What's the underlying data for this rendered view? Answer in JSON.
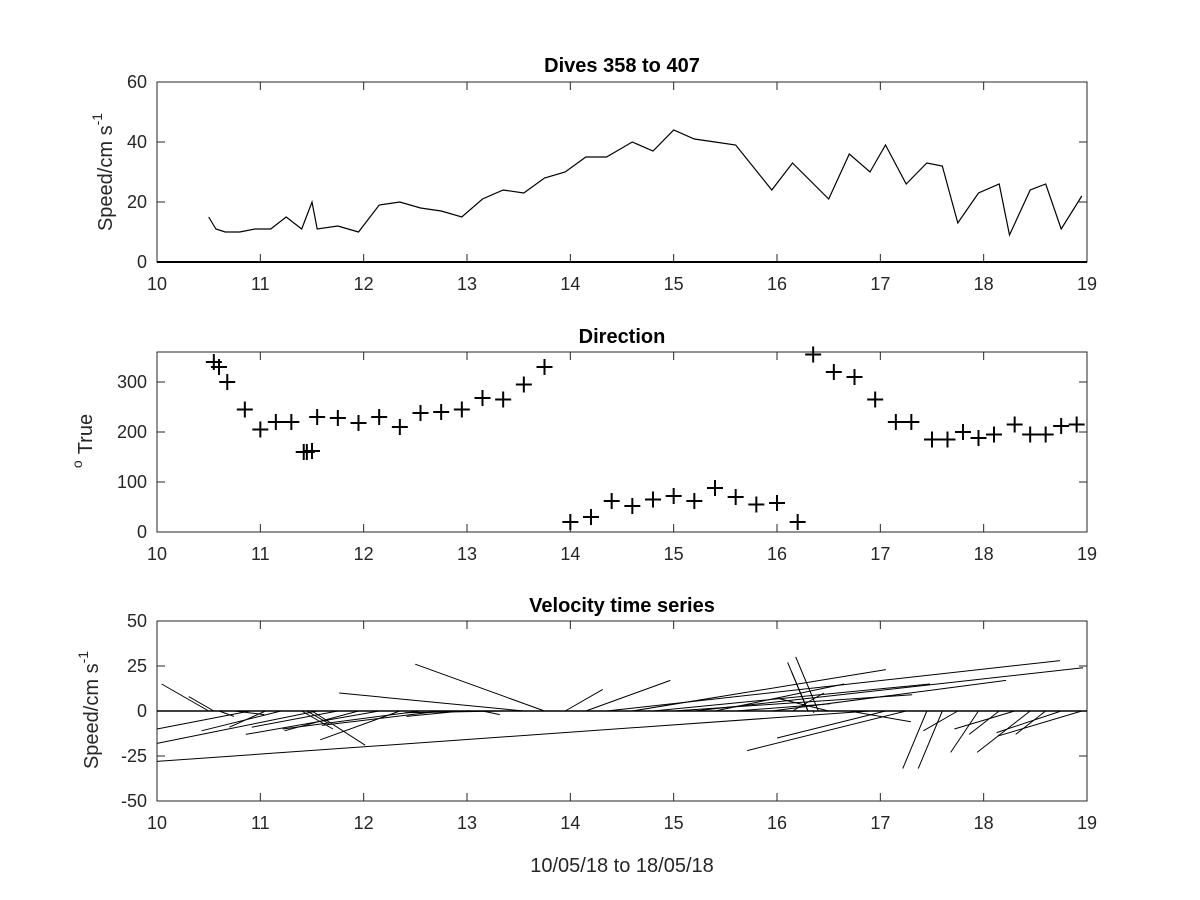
{
  "chart_data": [
    {
      "type": "line",
      "title": "Dives 358 to 407",
      "xlabel": "",
      "ylabel": "Speed/cm s",
      "ylabel_sup": "-1",
      "xlim": [
        10,
        19
      ],
      "ylim": [
        0,
        60
      ],
      "xticks": [
        10,
        11,
        12,
        13,
        14,
        15,
        16,
        17,
        18,
        19
      ],
      "yticks": [
        0,
        20,
        40,
        60
      ],
      "series": [
        {
          "x": [
            10.5,
            10.57,
            10.66,
            10.8,
            10.95,
            11.1,
            11.25,
            11.4,
            11.5,
            11.55,
            11.75,
            11.95,
            12.15,
            12.35,
            12.55,
            12.75,
            12.95,
            13.15,
            13.35,
            13.55,
            13.75,
            13.95,
            14.15,
            14.35,
            14.6,
            14.8,
            15.0,
            15.2,
            15.4,
            15.6,
            15.95,
            16.15,
            16.5,
            16.7,
            16.9,
            17.05,
            17.25,
            17.45,
            17.6,
            17.75,
            17.95,
            18.15,
            18.25,
            18.45,
            18.6,
            18.75,
            18.95
          ],
          "y": [
            15,
            11,
            10,
            10,
            11,
            11,
            15,
            11,
            20,
            11,
            12,
            10,
            19,
            20,
            18,
            17,
            15,
            21,
            24,
            23,
            28,
            30,
            35,
            35,
            40,
            37,
            44,
            41,
            40,
            39,
            24,
            33,
            21,
            36,
            30,
            39,
            26,
            33,
            32,
            13,
            23,
            26,
            9,
            24,
            26,
            11,
            22
          ]
        }
      ],
      "baseline": 0
    },
    {
      "type": "scatter",
      "title": "Direction",
      "xlabel": "",
      "ylabel": "True",
      "ylabel_sup": "o",
      "xlim": [
        10,
        19
      ],
      "ylim": [
        0,
        360
      ],
      "xticks": [
        10,
        11,
        12,
        13,
        14,
        15,
        16,
        17,
        18,
        19
      ],
      "yticks": [
        0,
        100,
        200,
        300
      ],
      "marker": "+",
      "series": [
        {
          "x": [
            10.55,
            10.6,
            10.68,
            10.85,
            11.0,
            11.15,
            11.3,
            11.42,
            11.45,
            11.5,
            11.55,
            11.75,
            11.95,
            12.15,
            12.35,
            12.55,
            12.75,
            12.95,
            13.15,
            13.35,
            13.55,
            13.75,
            14.0,
            14.2,
            14.4,
            14.6,
            14.8,
            15.0,
            15.2,
            15.4,
            15.6,
            15.8,
            16.0,
            16.2,
            16.35,
            16.55,
            16.75,
            16.95,
            17.15,
            17.3,
            17.5,
            17.65,
            17.8,
            17.95,
            18.1,
            18.3,
            18.45,
            18.6,
            18.75,
            18.9
          ],
          "y": [
            340,
            330,
            300,
            245,
            205,
            220,
            220,
            160,
            160,
            162,
            230,
            228,
            218,
            230,
            210,
            238,
            240,
            245,
            268,
            265,
            295,
            330,
            20,
            30,
            62,
            52,
            65,
            72,
            62,
            88,
            70,
            55,
            58,
            20,
            355,
            320,
            310,
            265,
            220,
            220,
            185,
            185,
            200,
            188,
            195,
            215,
            195,
            195,
            212,
            215
          ]
        }
      ]
    },
    {
      "type": "quiver",
      "title": "Velocity time series",
      "xlabel": "10/05/18 to 18/05/18",
      "ylabel": "Speed/cm s",
      "ylabel_sup": "-1",
      "xlim": [
        10,
        19
      ],
      "ylim": [
        -50,
        50
      ],
      "xticks": [
        10,
        11,
        12,
        13,
        14,
        15,
        16,
        17,
        18,
        19
      ],
      "yticks": [
        -50,
        -25,
        0,
        25,
        50
      ],
      "yticklabels": [
        "-50",
        "-25",
        "0",
        "25",
        "50"
      ],
      "vectors": {
        "x": [
          10.5,
          10.55,
          10.6,
          10.75,
          10.9,
          11.05,
          11.2,
          11.4,
          11.45,
          11.5,
          11.55,
          11.75,
          11.95,
          12.15,
          12.35,
          12.55,
          12.75,
          12.95,
          13.15,
          13.35,
          13.55,
          13.75,
          13.95,
          14.15,
          14.35,
          14.6,
          14.8,
          15.0,
          15.2,
          15.4,
          15.6,
          15.95,
          16.15,
          16.3,
          16.3,
          16.3,
          16.35,
          16.4,
          16.5,
          16.55,
          16.7,
          16.9,
          17.05,
          17.25,
          17.45,
          17.6,
          17.75,
          17.95,
          18.15,
          18.3,
          18.45,
          18.6,
          18.75,
          18.95
        ],
        "y_end": [
          15,
          8,
          -3,
          -2,
          -10,
          -9,
          -11,
          -10,
          -7,
          -19,
          -18,
          -9,
          -11,
          -13,
          -16,
          -10,
          -8,
          -3,
          -2,
          -1,
          10,
          26,
          12,
          17,
          28,
          23,
          15,
          9,
          24,
          15,
          4,
          17,
          10,
          22,
          12,
          27,
          -1,
          30,
          7,
          0,
          -6,
          -28,
          -15,
          -22,
          -32,
          -32,
          -11,
          -23,
          -13,
          -10,
          -23,
          -13,
          -12,
          -14
        ]
      }
    }
  ]
}
